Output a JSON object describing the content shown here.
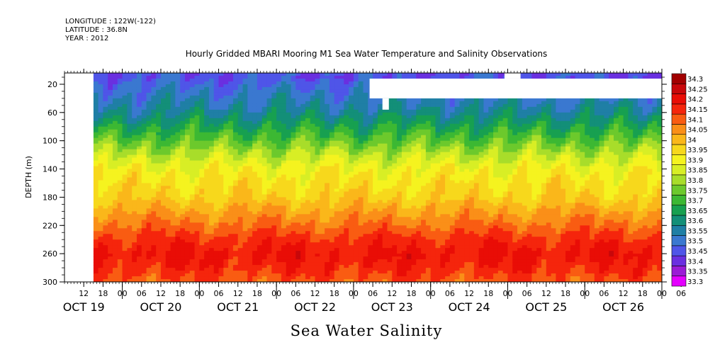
{
  "header": {
    "longitude": "LONGITUDE : 122W(-122)",
    "latitude": "LATITUDE : 36.8N",
    "year": "YEAR : 2012"
  },
  "chart_data": {
    "type": "heatmap",
    "title": "Hourly Gridded MBARI Mooring M1 Sea Water Temperature and Salinity Observations",
    "bottom_title": "Sea Water Salinity",
    "ylabel": "DEPTH (m)",
    "y_ticks": [
      20,
      60,
      100,
      140,
      180,
      220,
      260,
      300
    ],
    "ylim": [
      4,
      300
    ],
    "y_inverted": true,
    "x_hour_ticks": [
      "12",
      "18",
      "00",
      "06",
      "12",
      "18",
      "00",
      "06",
      "12",
      "18",
      "00",
      "06",
      "12",
      "18",
      "00",
      "06",
      "12",
      "18",
      "00",
      "06",
      "12",
      "18",
      "00",
      "06",
      "12",
      "18",
      "00",
      "06",
      "12",
      "18",
      "00",
      "06"
    ],
    "x_days": [
      "OCT 19",
      "OCT 20",
      "OCT 21",
      "OCT 22",
      "OCT 23",
      "OCT 24",
      "OCT 25",
      "OCT 26"
    ],
    "xlim_hours_from_oct19_00": [
      6,
      192
    ],
    "data_start_hour": 15,
    "colorbar_levels": [
      "33.3",
      "33.35",
      "33.4",
      "33.45",
      "33.5",
      "33.55",
      "33.6",
      "33.65",
      "33.7",
      "33.75",
      "33.8",
      "33.85",
      "33.9",
      "33.95",
      "34",
      "34.05",
      "34.1",
      "34.15",
      "34.2",
      "34.25",
      "34.3"
    ],
    "colorbar_colors": [
      "#e400ff",
      "#9b1bd6",
      "#6a2fe0",
      "#4f55e8",
      "#3a78d0",
      "#1f7fa5",
      "#138f78",
      "#17a050",
      "#3cb833",
      "#6cc92c",
      "#a8dd2a",
      "#d8ee25",
      "#f5f31f",
      "#f7d81c",
      "#fab71a",
      "#fa8f18",
      "#f95c12",
      "#f5250c",
      "#e90d06",
      "#c8070a",
      "#a20000"
    ],
    "depth_profile_mean": [
      {
        "depth": 10,
        "salinity": 33.47
      },
      {
        "depth": 20,
        "salinity": 33.5
      },
      {
        "depth": 40,
        "salinity": 33.55
      },
      {
        "depth": 60,
        "salinity": 33.6
      },
      {
        "depth": 80,
        "salinity": 33.68
      },
      {
        "depth": 100,
        "salinity": 33.76
      },
      {
        "depth": 120,
        "salinity": 33.85
      },
      {
        "depth": 140,
        "salinity": 33.92
      },
      {
        "depth": 160,
        "salinity": 33.96
      },
      {
        "depth": 180,
        "salinity": 33.99
      },
      {
        "depth": 200,
        "salinity": 34.05
      },
      {
        "depth": 220,
        "salinity": 34.11
      },
      {
        "depth": 240,
        "salinity": 34.17
      },
      {
        "depth": 260,
        "salinity": 34.21
      },
      {
        "depth": 280,
        "salinity": 34.18
      },
      {
        "depth": 300,
        "salinity": 34.13
      }
    ],
    "missing_data_regions": [
      {
        "start_hour": 6,
        "end_hour": 15,
        "depth_min": 4,
        "depth_max": 300
      },
      {
        "start_hour": 101,
        "end_hour": 192,
        "depth_min": 12,
        "depth_max": 40
      },
      {
        "start_hour": 105,
        "end_hour": 107,
        "depth_min": 40,
        "depth_max": 56
      },
      {
        "start_hour": 143,
        "end_hour": 148,
        "depth_min": 4,
        "depth_max": 12
      }
    ]
  }
}
